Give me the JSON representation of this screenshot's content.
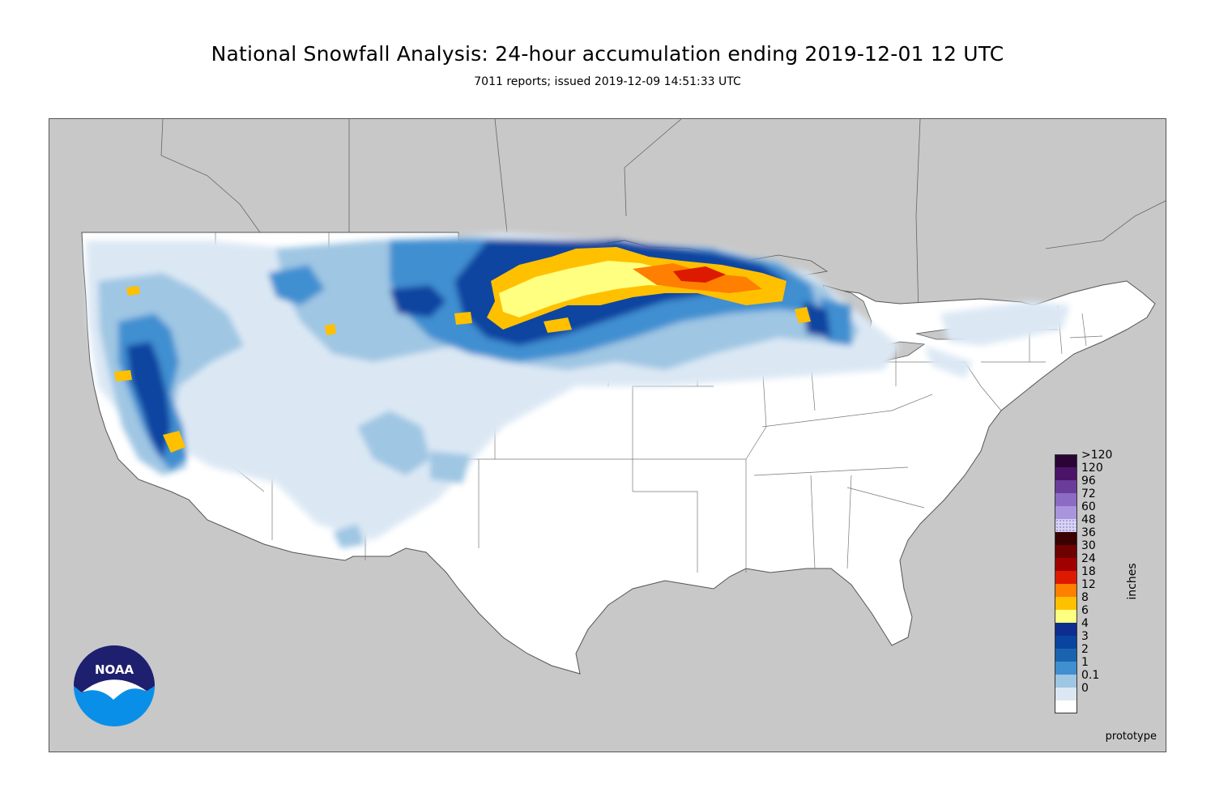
{
  "title": "National Snowfall Analysis: 24-hour accumulation ending 2019-12-01 12 UTC",
  "subtitle": "7011 reports; issued 2019-12-09 14:51:33 UTC",
  "legend": {
    "units": "inches",
    "labels": [
      ">120",
      "120",
      "96",
      "72",
      "60",
      "48",
      "36",
      "30",
      "24",
      "18",
      "12",
      "8",
      "6",
      "4",
      "3",
      "2",
      "1",
      "0.1",
      "0"
    ],
    "bins": [
      {
        "color": "#2b0436"
      },
      {
        "color": "#4b1469"
      },
      {
        "color": "#6a3d9a"
      },
      {
        "color": "#8c6bc4"
      },
      {
        "color": "#a995dd"
      },
      {
        "color": "#d7d3f2",
        "stipple": true
      },
      {
        "color": "#3a0000"
      },
      {
        "color": "#6e0000"
      },
      {
        "color": "#a10000"
      },
      {
        "color": "#dd1a00"
      },
      {
        "color": "#ff7f00"
      },
      {
        "color": "#ffc000"
      },
      {
        "color": "#ffff80"
      },
      {
        "color": "#0d2e8f"
      },
      {
        "color": "#0844a0"
      },
      {
        "color": "#1b63af"
      },
      {
        "color": "#3f8fd1"
      },
      {
        "color": "#9fc6e3"
      },
      {
        "color": "#dbe8f4"
      },
      {
        "color": "#ffffff"
      }
    ]
  },
  "map": {
    "land_color": "#ffffff",
    "outside_color": "#c8c8c8",
    "water_color": "#c8c8c8",
    "border_color": "#555555"
  },
  "logo": {
    "text": "NOAA"
  },
  "footer": {
    "prototype": "prototype"
  }
}
